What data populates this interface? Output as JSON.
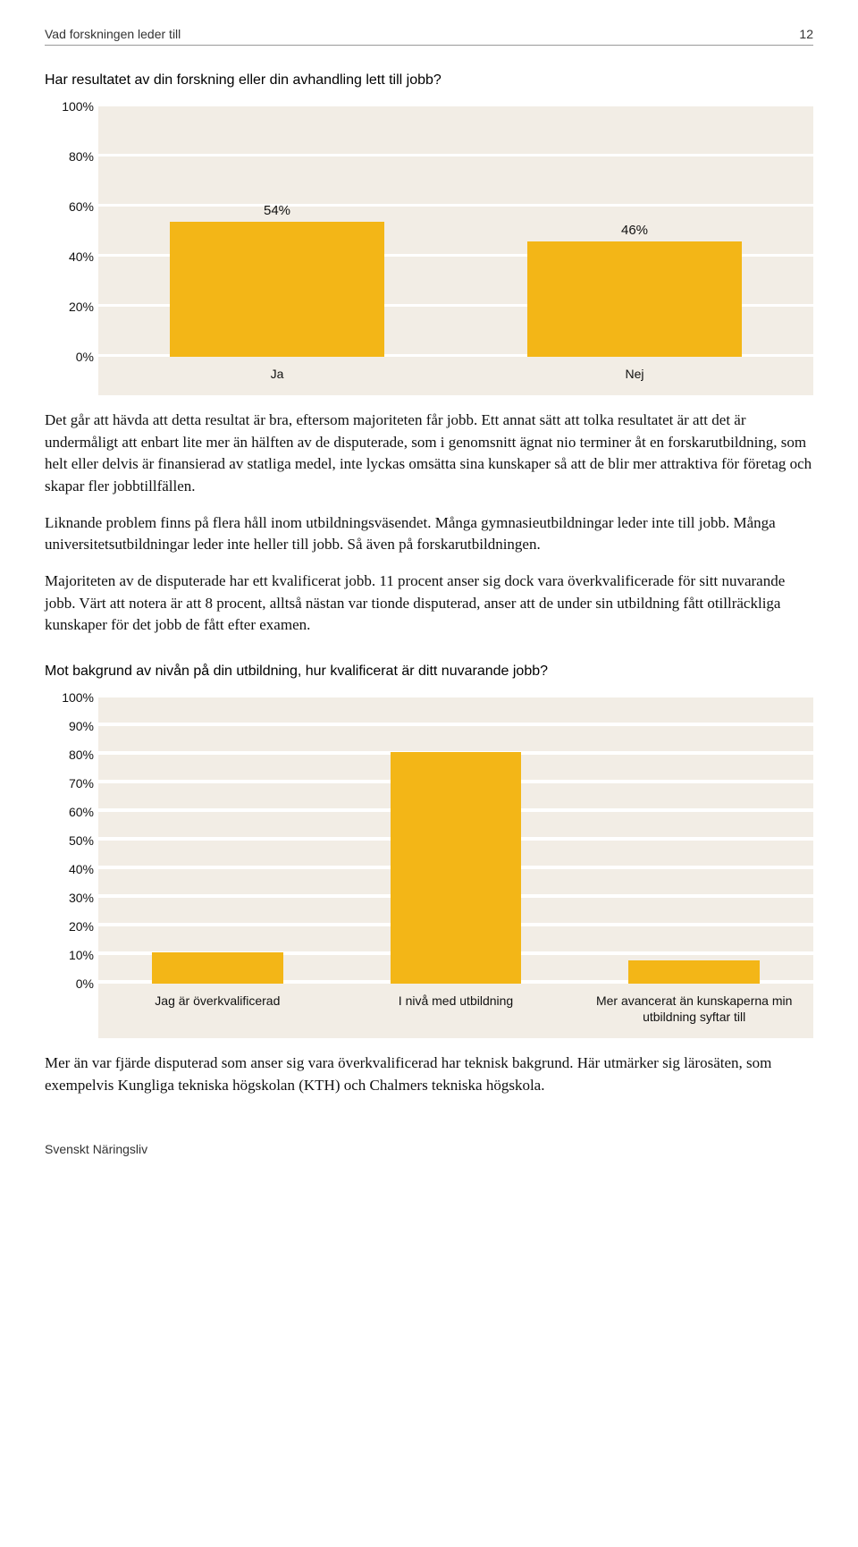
{
  "header": {
    "title": "Vad forskningen leder till",
    "page_number": "12"
  },
  "chart1": {
    "question": "Har resultatet av din forskning eller din avhandling lett till jobb?",
    "type": "bar",
    "ytick_labels": [
      "100%",
      "80%",
      "60%",
      "40%",
      "20%",
      "0%"
    ],
    "ytick_values": [
      100,
      80,
      60,
      40,
      20,
      0
    ],
    "ylim_max": 100,
    "categories": [
      "Ja",
      "Nej"
    ],
    "values": [
      54,
      46
    ],
    "value_labels": [
      "54%",
      "46%"
    ],
    "bar_color": "#f3b617",
    "band_color": "#f2ede5",
    "band_gap_color": "#ffffff"
  },
  "para1": "Det går att hävda att detta resultat är bra, eftersom majoriteten får jobb. Ett annat sätt att tolka resultatet är att det är undermåligt att enbart lite mer än hälften av de disputerade, som i genomsnitt ägnat nio terminer åt en forskarutbildning, som helt eller delvis är finansierad av statliga medel, inte lyckas omsätta sina kunskaper så att de blir mer attraktiva för företag och skapar fler jobbtillfällen.",
  "para2": "Liknande problem finns på flera håll inom utbildningsväsendet. Många gymnasieutbildningar leder inte till jobb. Många universitetsutbildningar leder inte heller till jobb. Så även på forskarutbildningen.",
  "para3": "Majoriteten av de disputerade har ett kvalificerat jobb. 11 procent anser sig dock vara överkvalificerade för sitt nuvarande jobb. Värt att notera är att 8 procent, alltså nästan var tionde disputerad, anser att de under sin utbildning fått otillräckliga kunskaper för det jobb de fått efter examen.",
  "chart2": {
    "question": "Mot bakgrund av nivån på din utbildning, hur kvalificerat är ditt nuvarande jobb?",
    "type": "bar",
    "ytick_labels": [
      "100%",
      "90%",
      "80%",
      "70%",
      "60%",
      "50%",
      "40%",
      "30%",
      "20%",
      "10%",
      "0%"
    ],
    "ytick_values": [
      100,
      90,
      80,
      70,
      60,
      50,
      40,
      30,
      20,
      10,
      0
    ],
    "ylim_max": 100,
    "categories": [
      "Jag är överkvalificerad",
      "I nivå med utbildning",
      "Mer avancerat än kunskaperna min utbildning syftar till"
    ],
    "values": [
      11,
      81,
      8
    ],
    "bar_color": "#f3b617",
    "band_color": "#f2ede5"
  },
  "para4": "Mer än var fjärde disputerad som anser sig vara överkvalificerad har teknisk bakgrund. Här utmärker sig lärosäten, som exempelvis Kungliga tekniska högskolan (KTH) och Chalmers tekniska högskola.",
  "footer": "Svenskt Näringsliv"
}
